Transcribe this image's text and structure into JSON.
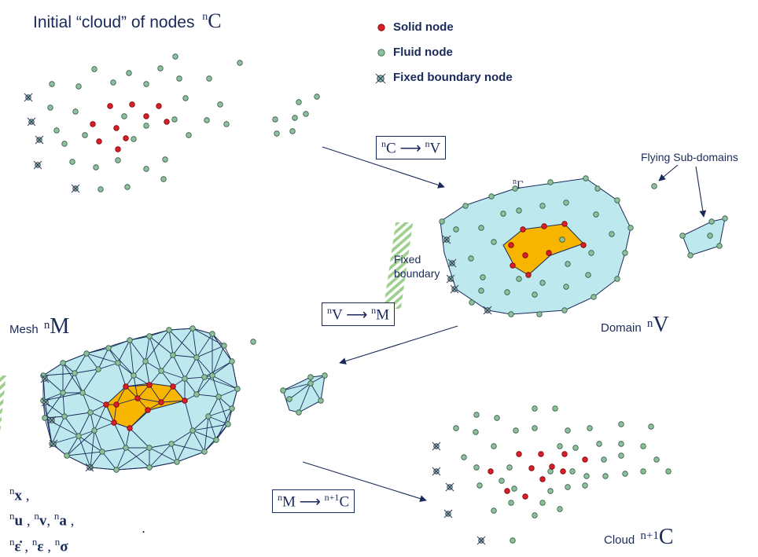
{
  "title": {
    "text": "Initial “cloud” of nodes",
    "sup": "n",
    "symbol": "C"
  },
  "legend": {
    "items": [
      {
        "label": "Solid node",
        "color": "#d9202a"
      },
      {
        "label": "Fluid node",
        "color": "#8fbf9f"
      },
      {
        "label": "Fixed boundary node",
        "icon": "crossed-circle-icon"
      }
    ]
  },
  "transitions": {
    "c_to_v": {
      "sup1": "n",
      "from": "C",
      "arrow": "⟶",
      "sup2": "n",
      "to": "V"
    },
    "v_to_m": {
      "sup1": "n",
      "from": "V",
      "arrow": "⟶",
      "sup2": "n",
      "to": "M"
    },
    "m_to_c": {
      "sup1": "n",
      "from": "M",
      "arrow": "⟶",
      "sup2": "n+1",
      "to": "C"
    }
  },
  "labels": {
    "flying": "Flying Sub-domains",
    "gamma_sup": "n",
    "gamma": "Γ",
    "fixed_boundary_1": "Fixed",
    "fixed_boundary_2": "boundary",
    "domain": {
      "text": "Domain",
      "sup": "n",
      "symbol": "V"
    },
    "mesh": {
      "text": "Mesh",
      "sup": "n",
      "symbol": "M"
    },
    "cloud": {
      "text": "Cloud",
      "sup": "n+1",
      "symbol": "C"
    }
  },
  "variables": {
    "row1": [
      {
        "sup": "n",
        "sym": "x",
        "sep": " ,"
      }
    ],
    "row2": [
      {
        "sup": "n",
        "sym": "u",
        "sep": " , "
      },
      {
        "sup": "n",
        "sym": "v",
        "sep": ", "
      },
      {
        "sup": "n",
        "sym": "a",
        "sep": " ,"
      }
    ],
    "row3": [
      {
        "sup": "n",
        "sym": "ε̇",
        "sep": " , "
      },
      {
        "sup": "n",
        "sym": "ε",
        "sep": " , "
      },
      {
        "sup": "n",
        "sym": "σ",
        "sep": ""
      }
    ],
    "dot": "."
  },
  "colors": {
    "solid": "#d9202a",
    "fluid": "#8fbf9f",
    "domain_fill": "#bde9ee",
    "solid_region": "#f7b500",
    "ink": "#1a2a5a",
    "hatch": "#9fcf8f"
  }
}
